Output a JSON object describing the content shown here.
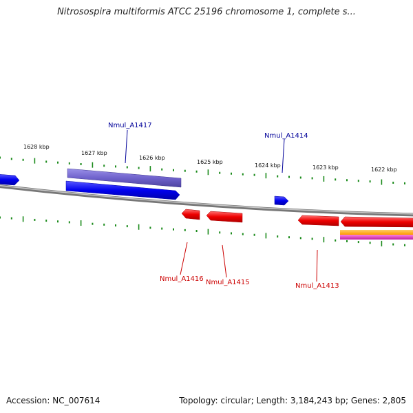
{
  "title": "Nitrosospira multiformis ATCC 25196 chromosome 1, complete s...",
  "footer": {
    "accession": "Accession: NC_007614",
    "topology": "Topology: circular; Length: 3,184,243 bp; Genes: 2,805"
  },
  "colors": {
    "backbone": "#888888",
    "tick": "#1a8a1a",
    "forward_gene": "#1a1aff",
    "forward_gene_alt": "#7a6fd8",
    "reverse_gene": "#ff1a1a",
    "orange_feature": "#ffa500",
    "magenta_feature": "#e040c0",
    "forward_label": "#000099",
    "reverse_label": "#cc0000"
  },
  "kbp_labels": [
    "1628 kbp",
    "1627 kbp",
    "1626 kbp",
    "1625 kbp",
    "1624 kbp",
    "1623 kbp",
    "1622 kbp"
  ],
  "gene_labels": {
    "forward": [
      "Nmul_A1417",
      "Nmul_A1414"
    ],
    "reverse": [
      "Nmul_A1416",
      "Nmul_A1415",
      "Nmul_A1413"
    ]
  }
}
